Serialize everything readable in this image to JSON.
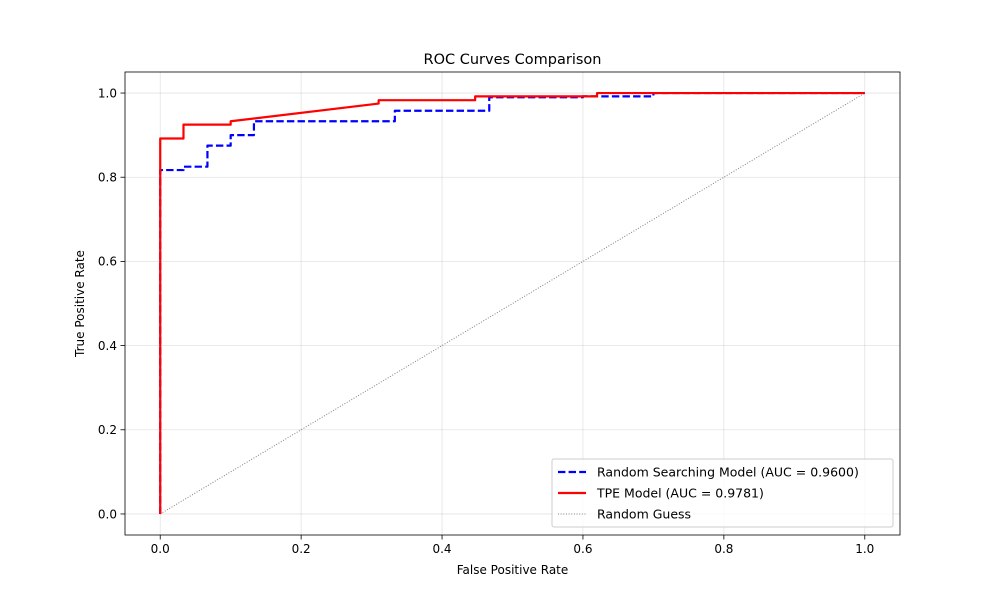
{
  "chart_data": {
    "type": "line",
    "title": "ROC Curves Comparison",
    "xlabel": "False Positive Rate",
    "ylabel": "True Positive Rate",
    "xlim": [
      -0.05,
      1.05
    ],
    "ylim": [
      -0.05,
      1.05
    ],
    "xticks": [
      0.0,
      0.2,
      0.4,
      0.6,
      0.8,
      1.0
    ],
    "yticks": [
      0.0,
      0.2,
      0.4,
      0.6,
      0.8,
      1.0
    ],
    "xtick_labels": [
      "0.0",
      "0.2",
      "0.4",
      "0.6",
      "0.8",
      "1.0"
    ],
    "ytick_labels": [
      "0.0",
      "0.2",
      "0.4",
      "0.6",
      "0.8",
      "1.0"
    ],
    "grid": true,
    "legend_position": "lower-right",
    "series": [
      {
        "name": "Random Searching Model (AUC = 0.9600)",
        "color": "#0000ff",
        "style": "dashed",
        "x": [
          0.0,
          0.0,
          0.0,
          0.033,
          0.033,
          0.067,
          0.067,
          0.1,
          0.1,
          0.133,
          0.133,
          0.333,
          0.333,
          0.467,
          0.467,
          0.6,
          0.6,
          0.7,
          0.7,
          1.0
        ],
        "y": [
          0.0,
          0.008,
          0.817,
          0.817,
          0.825,
          0.825,
          0.875,
          0.875,
          0.9,
          0.9,
          0.933,
          0.933,
          0.958,
          0.958,
          0.99,
          0.99,
          0.992,
          0.992,
          1.0,
          1.0
        ]
      },
      {
        "name": "TPE Model (AUC = 0.9781)",
        "color": "#ff0000",
        "style": "solid",
        "x": [
          0.0,
          0.0,
          0.0,
          0.033,
          0.033,
          0.1,
          0.1,
          0.31,
          0.31,
          0.447,
          0.447,
          0.62,
          0.62,
          1.0
        ],
        "y": [
          0.0,
          0.008,
          0.892,
          0.892,
          0.925,
          0.925,
          0.933,
          0.975,
          0.983,
          0.983,
          0.992,
          0.992,
          1.0,
          1.0
        ]
      },
      {
        "name": "Random Guess",
        "color": "#808080",
        "style": "dotted",
        "x": [
          0.0,
          1.0
        ],
        "y": [
          0.0,
          1.0
        ]
      }
    ]
  }
}
